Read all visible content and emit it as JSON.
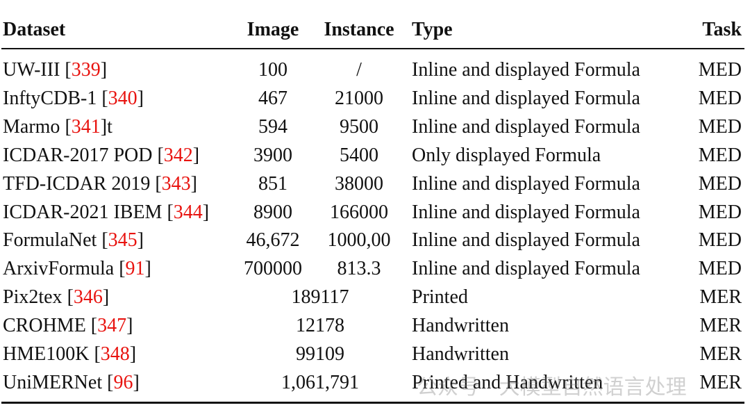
{
  "header": {
    "dataset": "Dataset",
    "image": "Image",
    "instance": "Instance",
    "type": "Type",
    "task": "Task"
  },
  "rows": [
    {
      "name": "UW-III",
      "ref": "339",
      "suffix": "",
      "image": "100",
      "instance": "/",
      "type": "Inline and displayed Formula",
      "task": "MED"
    },
    {
      "name": "InftyCDB-1",
      "ref": "340",
      "suffix": "",
      "image": "467",
      "instance": "21000",
      "type": "Inline and displayed Formula",
      "task": "MED"
    },
    {
      "name": "Marmo",
      "ref": "341",
      "suffix": "t",
      "image": "594",
      "instance": "9500",
      "type": "Inline and displayed Formula",
      "task": "MED"
    },
    {
      "name": "ICDAR-2017 POD",
      "ref": "342",
      "suffix": "",
      "image": "3900",
      "instance": "5400",
      "type": "Only displayed Formula",
      "task": "MED"
    },
    {
      "name": "TFD-ICDAR 2019 ",
      "ref": "343",
      "suffix": "",
      "image": "851",
      "instance": "38000",
      "type": "Inline and displayed Formula",
      "task": "MED"
    },
    {
      "name": "ICDAR-2021 IBEM",
      "ref": "344",
      "suffix": "",
      "image": "8900",
      "instance": "166000",
      "type": "Inline and displayed Formula",
      "task": "MED"
    },
    {
      "name": "FormulaNet",
      "ref": "345",
      "suffix": "",
      "image": "46,672",
      "instance": "1000,00",
      "type": "Inline and displayed Formula",
      "task": "MED"
    },
    {
      "name": "ArxivFormula",
      "ref": "91",
      "suffix": "",
      "image": "700000",
      "instance": "813.3",
      "type": "Inline and displayed Formula",
      "task": "MED"
    },
    {
      "name": "Pix2tex",
      "ref": "346",
      "suffix": "",
      "merged": "189117",
      "type": "Printed",
      "task": "MER"
    },
    {
      "name": "CROHME",
      "ref": "347",
      "suffix": "",
      "merged": "12178",
      "type": "Handwritten",
      "task": "MER"
    },
    {
      "name": "HME100K",
      "ref": "348",
      "suffix": "",
      "merged": "99109",
      "type": "Handwritten",
      "task": "MER"
    },
    {
      "name": "UniMERNet",
      "ref": "96",
      "suffix": "",
      "merged": "1,061,791",
      "type": "Printed and Handwritten",
      "task": "MER"
    }
  ],
  "watermark": "公众号 · 大模型自然语言处理",
  "colors": {
    "reference": "#e8130f",
    "text": "#111111"
  }
}
